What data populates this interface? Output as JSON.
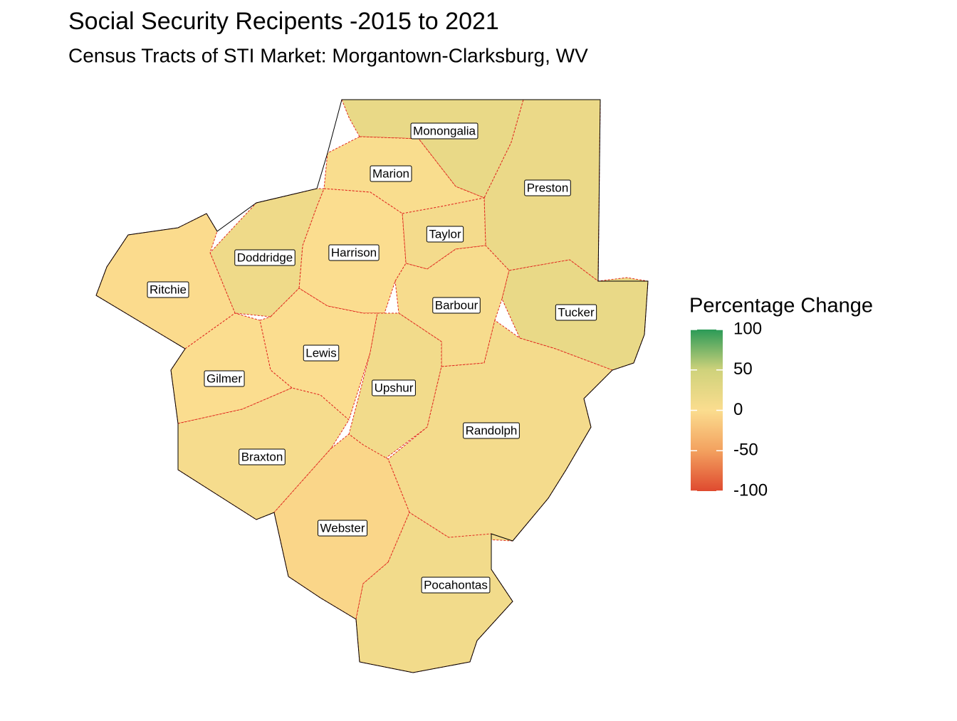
{
  "header": {
    "title": "Social Security Recipents -2015 to 2021",
    "subtitle": "Census Tracts of STI Market: Morgantown-Clarksburg, WV"
  },
  "map": {
    "counties": [
      {
        "label": "Monongalia",
        "change": 20
      },
      {
        "label": "Preston",
        "change": 18
      },
      {
        "label": "Marion",
        "change": 2
      },
      {
        "label": "Taylor",
        "change": 8
      },
      {
        "label": "Harrison",
        "change": 0
      },
      {
        "label": "Doddridge",
        "change": 14
      },
      {
        "label": "Ritchie",
        "change": -2
      },
      {
        "label": "Barbour",
        "change": 4
      },
      {
        "label": "Tucker",
        "change": 20
      },
      {
        "label": "Lewis",
        "change": 0
      },
      {
        "label": "Gilmer",
        "change": 0
      },
      {
        "label": "Upshur",
        "change": 10
      },
      {
        "label": "Randolph",
        "change": 8
      },
      {
        "label": "Braxton",
        "change": 6
      },
      {
        "label": "Webster",
        "change": -6
      },
      {
        "label": "Pocahontas",
        "change": 10
      }
    ],
    "legend": {
      "title": "Percentage Change",
      "lim": [
        -100,
        100
      ],
      "ticks": [
        100,
        50,
        0,
        -50,
        -100
      ],
      "colors": [
        "#df4a2f",
        "#f3a15f",
        "#fbdd8f",
        "#cfd27b",
        "#2b9a57"
      ]
    }
  }
}
